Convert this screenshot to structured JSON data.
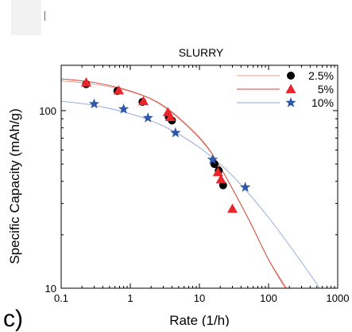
{
  "panel_label": "c)",
  "chart_data": {
    "type": "scatter",
    "title": "SLURRY",
    "xlabel": "Rate (1/h)",
    "ylabel": "Specific Capacity (mAh/g)",
    "xscale": "log",
    "yscale": "log",
    "xlim": [
      0.1,
      1000
    ],
    "ylim": [
      10,
      180
    ],
    "x_ticks": [
      0.1,
      1,
      10,
      100,
      1000
    ],
    "x_tick_labels": [
      "0.1",
      "1",
      "10",
      "100",
      "1000"
    ],
    "y_ticks": [
      10,
      100
    ],
    "y_tick_labels": [
      "10",
      "100"
    ],
    "legend_position": "top-right",
    "series": [
      {
        "name": "2.5%",
        "marker": "circle",
        "color": "#000000",
        "fit_color": "#e0a090",
        "x": [
          0.23,
          0.65,
          1.5,
          3.6,
          4.0,
          16.5,
          19.0,
          22.0
        ],
        "y": [
          141,
          129,
          112,
          92,
          88,
          50,
          46,
          38
        ],
        "fit": {
          "x": [
            0.1,
            0.3,
            1,
            3,
            10,
            20,
            50,
            100,
            200
          ],
          "y": [
            147,
            141,
            128,
            107,
            71,
            48,
            25,
            14.5,
            9.5
          ]
        }
      },
      {
        "name": "5%",
        "marker": "triangle",
        "color": "#e8262b",
        "fit_color": "#d94030",
        "x": [
          0.23,
          0.68,
          1.55,
          3.5,
          3.8,
          18.5,
          20.5,
          30.0
        ],
        "y": [
          144,
          130,
          113,
          98,
          92,
          45,
          41,
          28
        ],
        "fit": {
          "x": [
            0.1,
            0.3,
            1,
            3,
            10,
            20,
            50,
            100,
            190
          ],
          "y": [
            151,
            144,
            129,
            106,
            70,
            48,
            25,
            14.5,
            9.5
          ]
        }
      },
      {
        "name": "10%",
        "marker": "star",
        "color": "#2f58a8",
        "fit_color": "#8fa3d8",
        "x": [
          0.3,
          0.8,
          1.8,
          4.5,
          15.5,
          46.0
        ],
        "y": [
          109,
          102,
          91,
          75,
          53,
          37
        ],
        "fit": {
          "x": [
            0.1,
            0.3,
            1,
            3,
            10,
            30,
            100,
            300,
            600
          ],
          "y": [
            113,
            107,
            96,
            82,
            62,
            43,
            25,
            14,
            9.5
          ]
        }
      }
    ]
  }
}
